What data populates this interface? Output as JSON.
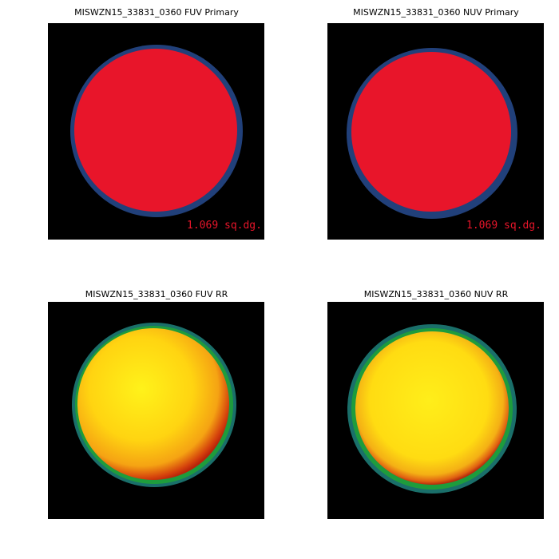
{
  "panels": [
    {
      "title": "MISWZN15_33831_0360 FUV Primary",
      "area_label": "1.069 sq.dg."
    },
    {
      "title": "MISWZN15_33831_0360 NUV Primary",
      "area_label": "1.069 sq.dg."
    },
    {
      "title": "MISWZN15_33831_0360 FUV RR"
    },
    {
      "title": "MISWZN15_33831_0360 NUV RR"
    }
  ]
}
